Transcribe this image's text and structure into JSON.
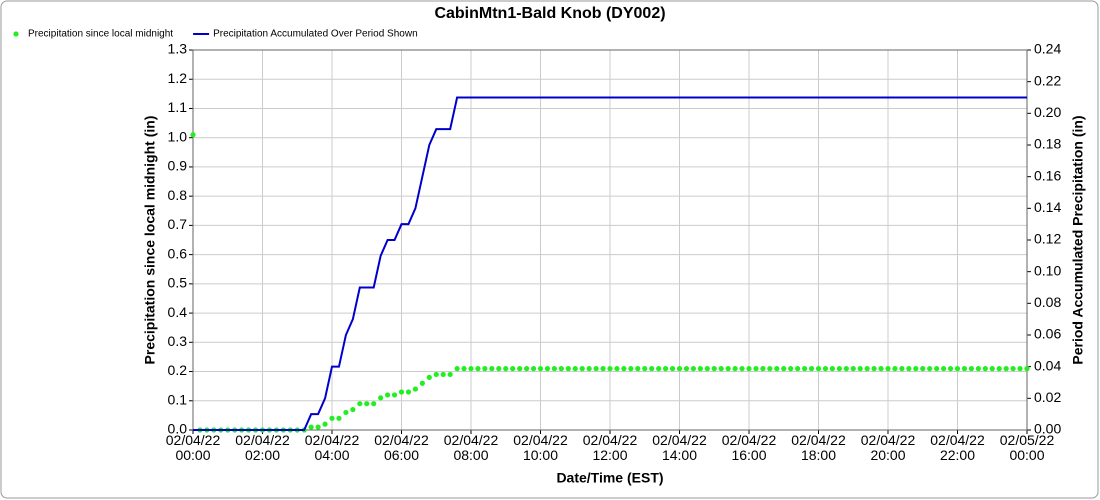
{
  "chart_data": {
    "type": "line",
    "title": "CabinMtn1-Bald Knob (DY002)",
    "xlabel": "Date/Time (EST)",
    "ylabel": "Precipitation since local midnight (in)",
    "y2label": "Period Accumulated Precipitation (in)",
    "legend": "top-left",
    "grid": true,
    "x": [
      "02/04/22 00:00",
      "02/04/22 00:12",
      "02/04/22 00:24",
      "02/04/22 00:36",
      "02/04/22 00:48",
      "02/04/22 01:00",
      "02/04/22 01:12",
      "02/04/22 01:24",
      "02/04/22 01:36",
      "02/04/22 01:48",
      "02/04/22 02:00",
      "02/04/22 02:12",
      "02/04/22 02:24",
      "02/04/22 02:36",
      "02/04/22 02:48",
      "02/04/22 03:00",
      "02/04/22 03:12",
      "02/04/22 03:24",
      "02/04/22 03:36",
      "02/04/22 03:48",
      "02/04/22 04:00",
      "02/04/22 04:12",
      "02/04/22 04:24",
      "02/04/22 04:36",
      "02/04/22 04:48",
      "02/04/22 05:00",
      "02/04/22 05:12",
      "02/04/22 05:24",
      "02/04/22 05:36",
      "02/04/22 05:48",
      "02/04/22 06:00",
      "02/04/22 06:12",
      "02/04/22 06:24",
      "02/04/22 06:36",
      "02/04/22 06:48",
      "02/04/22 07:00",
      "02/04/22 07:12",
      "02/04/22 07:24",
      "02/04/22 07:36",
      "02/04/22 07:48",
      "02/04/22 08:00",
      "02/04/22 08:12",
      "02/04/22 08:24",
      "02/04/22 08:36",
      "02/04/22 08:48",
      "02/04/22 09:00",
      "02/04/22 09:12",
      "02/04/22 09:24",
      "02/04/22 09:36",
      "02/04/22 09:48",
      "02/04/22 10:00",
      "02/04/22 10:12",
      "02/04/22 10:24",
      "02/04/22 10:36",
      "02/04/22 10:48",
      "02/04/22 11:00",
      "02/04/22 11:12",
      "02/04/22 11:24",
      "02/04/22 11:36",
      "02/04/22 11:48",
      "02/04/22 12:00",
      "02/04/22 12:12",
      "02/04/22 12:24",
      "02/04/22 12:36",
      "02/04/22 12:48",
      "02/04/22 13:00",
      "02/04/22 13:12",
      "02/04/22 13:24",
      "02/04/22 13:36",
      "02/04/22 13:48",
      "02/04/22 14:00",
      "02/04/22 14:12",
      "02/04/22 14:24",
      "02/04/22 14:36",
      "02/04/22 14:48",
      "02/04/22 15:00",
      "02/04/22 15:12",
      "02/04/22 15:24",
      "02/04/22 15:36",
      "02/04/22 15:48",
      "02/04/22 16:00",
      "02/04/22 16:12",
      "02/04/22 16:24",
      "02/04/22 16:36",
      "02/04/22 16:48",
      "02/04/22 17:00",
      "02/04/22 17:12",
      "02/04/22 17:24",
      "02/04/22 17:36",
      "02/04/22 17:48",
      "02/04/22 18:00",
      "02/04/22 18:12",
      "02/04/22 18:24",
      "02/04/22 18:36",
      "02/04/22 18:48",
      "02/04/22 19:00",
      "02/04/22 19:12",
      "02/04/22 19:24",
      "02/04/22 19:36",
      "02/04/22 19:48",
      "02/04/22 20:00",
      "02/04/22 20:12",
      "02/04/22 20:24",
      "02/04/22 20:36",
      "02/04/22 20:48",
      "02/04/22 21:00",
      "02/04/22 21:12",
      "02/04/22 21:24",
      "02/04/22 21:36",
      "02/04/22 21:48",
      "02/04/22 22:00",
      "02/04/22 22:12",
      "02/04/22 22:24",
      "02/04/22 22:36",
      "02/04/22 22:48",
      "02/04/22 23:00",
      "02/04/22 23:12",
      "02/04/22 23:24",
      "02/04/22 23:36",
      "02/04/22 23:48",
      "02/05/22 00:00"
    ],
    "series": [
      {
        "name": "Precipitation since local midnight",
        "color": "#22ee22",
        "style": "dots",
        "axis": "y",
        "values": [
          1.01,
          0,
          0,
          0,
          0,
          0,
          0,
          0,
          0,
          0,
          0,
          0,
          0,
          0,
          0,
          0,
          0,
          0.01,
          0.01,
          0.02,
          0.04,
          0.04,
          0.06,
          0.07,
          0.09,
          0.09,
          0.09,
          0.11,
          0.12,
          0.12,
          0.13,
          0.13,
          0.14,
          0.16,
          0.18,
          0.19,
          0.19,
          0.19,
          0.21,
          0.21,
          0.21,
          0.21,
          0.21,
          0.21,
          0.21,
          0.21,
          0.21,
          0.21,
          0.21,
          0.21,
          0.21,
          0.21,
          0.21,
          0.21,
          0.21,
          0.21,
          0.21,
          0.21,
          0.21,
          0.21,
          0.21,
          0.21,
          0.21,
          0.21,
          0.21,
          0.21,
          0.21,
          0.21,
          0.21,
          0.21,
          0.21,
          0.21,
          0.21,
          0.21,
          0.21,
          0.21,
          0.21,
          0.21,
          0.21,
          0.21,
          0.21,
          0.21,
          0.21,
          0.21,
          0.21,
          0.21,
          0.21,
          0.21,
          0.21,
          0.21,
          0.21,
          0.21,
          0.21,
          0.21,
          0.21,
          0.21,
          0.21,
          0.21,
          0.21,
          0.21,
          0.21,
          0.21,
          0.21,
          0.21,
          0.21,
          0.21,
          0.21,
          0.21,
          0.21,
          0.21,
          0.21,
          0.21,
          0.21,
          0.21,
          0.21,
          0.21,
          0.21,
          0.21,
          0.21,
          0.21,
          0.21
        ]
      },
      {
        "name": "Precipitation Accumulated Over Period Shown",
        "color": "#0000cc",
        "style": "line",
        "axis": "y2",
        "values": [
          0,
          0,
          0,
          0,
          0,
          0,
          0,
          0,
          0,
          0,
          0,
          0,
          0,
          0,
          0,
          0,
          0,
          0.01,
          0.01,
          0.02,
          0.04,
          0.04,
          0.06,
          0.07,
          0.09,
          0.09,
          0.09,
          0.11,
          0.12,
          0.12,
          0.13,
          0.13,
          0.14,
          0.16,
          0.18,
          0.19,
          0.19,
          0.19,
          0.21,
          0.21,
          0.21,
          0.21,
          0.21,
          0.21,
          0.21,
          0.21,
          0.21,
          0.21,
          0.21,
          0.21,
          0.21,
          0.21,
          0.21,
          0.21,
          0.21,
          0.21,
          0.21,
          0.21,
          0.21,
          0.21,
          0.21,
          0.21,
          0.21,
          0.21,
          0.21,
          0.21,
          0.21,
          0.21,
          0.21,
          0.21,
          0.21,
          0.21,
          0.21,
          0.21,
          0.21,
          0.21,
          0.21,
          0.21,
          0.21,
          0.21,
          0.21,
          0.21,
          0.21,
          0.21,
          0.21,
          0.21,
          0.21,
          0.21,
          0.21,
          0.21,
          0.21,
          0.21,
          0.21,
          0.21,
          0.21,
          0.21,
          0.21,
          0.21,
          0.21,
          0.21,
          0.21,
          0.21,
          0.21,
          0.21,
          0.21,
          0.21,
          0.21,
          0.21,
          0.21,
          0.21,
          0.21,
          0.21,
          0.21,
          0.21,
          0.21,
          0.21,
          0.21,
          0.21,
          0.21,
          0.21,
          0.21
        ]
      }
    ],
    "xlim": [
      "02/04/22 00:00",
      "02/05/22 00:00"
    ],
    "xticks": [
      {
        "value": "02/04/22 00:00",
        "label": "02/04/22\n00:00"
      },
      {
        "value": "02/04/22 02:00",
        "label": "02/04/22\n02:00"
      },
      {
        "value": "02/04/22 04:00",
        "label": "02/04/22\n04:00"
      },
      {
        "value": "02/04/22 06:00",
        "label": "02/04/22\n06:00"
      },
      {
        "value": "02/04/22 08:00",
        "label": "02/04/22\n08:00"
      },
      {
        "value": "02/04/22 10:00",
        "label": "02/04/22\n10:00"
      },
      {
        "value": "02/04/22 12:00",
        "label": "02/04/22\n12:00"
      },
      {
        "value": "02/04/22 14:00",
        "label": "02/04/22\n14:00"
      },
      {
        "value": "02/04/22 16:00",
        "label": "02/04/22\n16:00"
      },
      {
        "value": "02/04/22 18:00",
        "label": "02/04/22\n18:00"
      },
      {
        "value": "02/04/22 20:00",
        "label": "02/04/22\n20:00"
      },
      {
        "value": "02/04/22 22:00",
        "label": "02/04/22\n22:00"
      },
      {
        "value": "02/05/22 00:00",
        "label": "02/05/22\n00:00"
      }
    ],
    "ylim": [
      0,
      1.3
    ],
    "yticks": [
      {
        "value": 0,
        "label": "0.0"
      },
      0.1,
      0.2,
      0.3,
      0.4,
      0.5,
      0.6,
      0.7,
      0.8,
      0.9,
      {
        "value": 1,
        "label": "1.0"
      },
      1.1,
      1.2,
      1.3
    ],
    "y2lim": [
      0,
      0.24
    ],
    "y2ticks": [
      {
        "value": 0,
        "label": "0.00"
      },
      0.02,
      0.04,
      0.06,
      0.08,
      {
        "value": 0.1,
        "label": "0.10"
      },
      0.12,
      0.14,
      0.16,
      0.18,
      {
        "value": 0.2,
        "label": "0.20"
      },
      0.22,
      0.24
    ]
  }
}
